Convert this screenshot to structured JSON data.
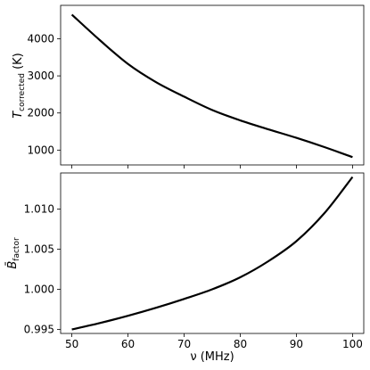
{
  "chart_data": [
    {
      "type": "line",
      "title": "",
      "xlabel": "",
      "ylabel_main": "T",
      "ylabel_sub": "corrected",
      "ylabel_unit": " (K)",
      "xlim": [
        48,
        102
      ],
      "ylim": [
        600,
        4900
      ],
      "yticks": [
        1000,
        2000,
        3000,
        4000
      ],
      "ytick_labels": [
        "1000",
        "2000",
        "3000",
        "4000"
      ],
      "xticks": [
        50,
        60,
        70,
        80,
        90,
        100
      ],
      "grid": false,
      "legend": "none",
      "series": [
        {
          "x": [
            50,
            55,
            60,
            65,
            70,
            75,
            80,
            85,
            90,
            95,
            100
          ],
          "y": [
            4650,
            3960,
            3320,
            2830,
            2440,
            2080,
            1800,
            1560,
            1330,
            1080,
            810
          ]
        }
      ]
    },
    {
      "type": "line",
      "title": "",
      "xlabel": "ν (MHz)",
      "ylabel_main": "B̄",
      "ylabel_sub": "factor",
      "ylabel_unit": "",
      "xlim": [
        48,
        102
      ],
      "ylim": [
        0.9945,
        1.0145
      ],
      "yticks": [
        0.995,
        1.0,
        1.005,
        1.01
      ],
      "ytick_labels": [
        "0.995",
        "1.000",
        "1.005",
        "1.010"
      ],
      "xticks": [
        50,
        60,
        70,
        80,
        90,
        100
      ],
      "xtick_labels": [
        "50",
        "60",
        "70",
        "80",
        "90",
        "100"
      ],
      "grid": false,
      "legend": "none",
      "series": [
        {
          "x": [
            50,
            55,
            60,
            65,
            70,
            75,
            80,
            85,
            90,
            95,
            100
          ],
          "y": [
            0.995,
            0.9958,
            0.9967,
            0.9977,
            0.9988,
            1.0,
            1.0015,
            1.0035,
            1.006,
            1.0095,
            1.014
          ]
        }
      ]
    }
  ]
}
